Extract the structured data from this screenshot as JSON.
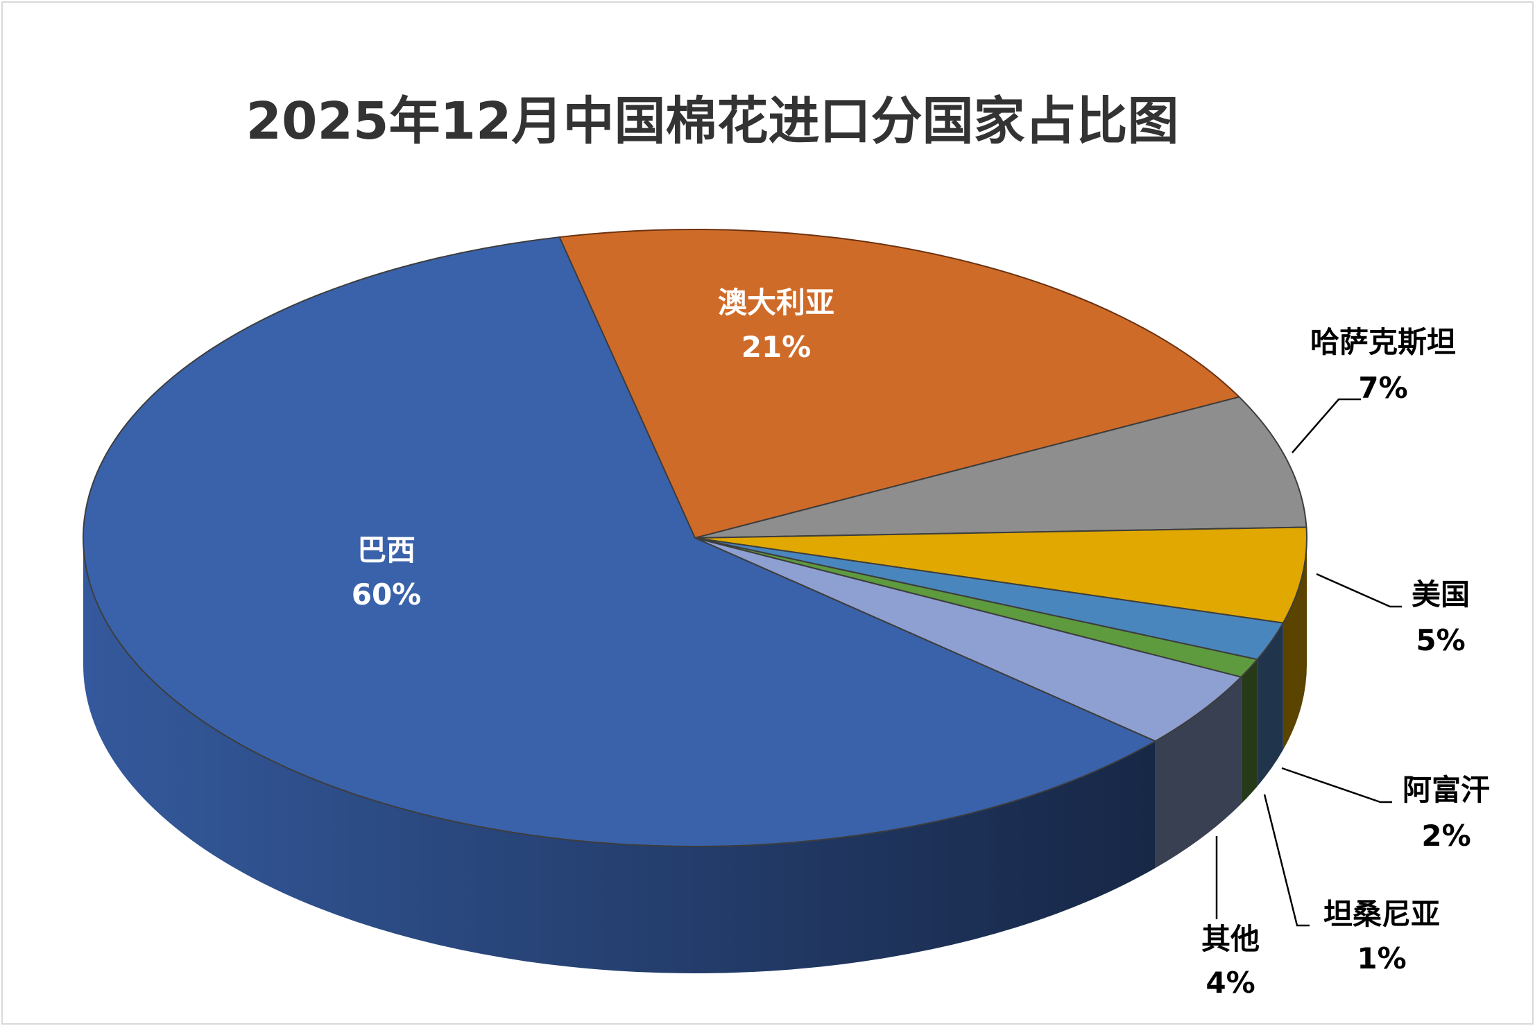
{
  "chart_data": {
    "type": "pie",
    "style": "3d",
    "title": "2025年12月中国棉花进口分国家占比图",
    "slices": [
      {
        "label": "澳大利亚",
        "value": 21,
        "pct_label": "21%",
        "color": "#CF6B29",
        "side": "#7A3A12",
        "label_color": "#FFFFFF"
      },
      {
        "label": "哈萨克斯坦",
        "value": 7,
        "pct_label": "7%",
        "color": "#8E8E8E",
        "side": "#505050",
        "label_color": "#000000"
      },
      {
        "label": "美国",
        "value": 5,
        "pct_label": "5%",
        "color": "#E0A800",
        "side": "#5A4400",
        "label_color": "#000000"
      },
      {
        "label": "阿富汗",
        "value": 2,
        "pct_label": "2%",
        "color": "#4A86BE",
        "side": "#20344C",
        "label_color": "#000000"
      },
      {
        "label": "坦桑尼亚",
        "value": 1,
        "pct_label": "1%",
        "color": "#5E9A3E",
        "side": "#263A1A",
        "label_color": "#000000"
      },
      {
        "label": "其他",
        "value": 4,
        "pct_label": "4%",
        "color": "#8EA0D2",
        "side": "#394052",
        "label_color": "#000000"
      },
      {
        "label": "巴西",
        "value": 60,
        "pct_label": "60%",
        "color": "#3A62AA",
        "side": "#2A4680",
        "label_color": "#FFFFFF"
      }
    ]
  }
}
